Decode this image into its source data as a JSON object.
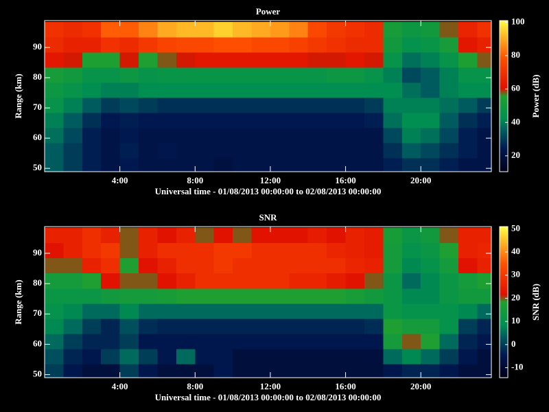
{
  "chart_data": [
    {
      "type": "heatmap",
      "title": "Power",
      "xlabel": "Universal time - 01/08/2013 00:00:00 to 02/08/2013 00:00:00",
      "ylabel": "Range (km)",
      "colorbar_label": "Power (dB)",
      "x": [
        0.5,
        1.5,
        2.5,
        3.5,
        4.5,
        5.5,
        6.5,
        7.5,
        8.5,
        9.5,
        10.5,
        11.5,
        12.5,
        13.5,
        14.5,
        15.5,
        16.5,
        17.5,
        18.5,
        19.5,
        20.5,
        21.5,
        22.5,
        23.5
      ],
      "y": [
        51,
        56,
        61,
        66,
        71,
        76,
        81,
        86,
        91,
        96
      ],
      "z": [
        [
          35,
          30,
          25,
          22,
          24,
          22,
          22,
          22,
          22,
          20,
          22,
          22,
          22,
          22,
          22,
          22,
          22,
          22,
          25,
          28,
          28,
          25,
          22,
          22
        ],
        [
          35,
          30,
          25,
          22,
          25,
          22,
          23,
          22,
          22,
          22,
          22,
          22,
          22,
          22,
          22,
          22,
          22,
          22,
          28,
          35,
          32,
          28,
          25,
          22
        ],
        [
          38,
          32,
          25,
          22,
          24,
          22,
          22,
          22,
          22,
          22,
          22,
          22,
          22,
          22,
          22,
          22,
          22,
          22,
          32,
          40,
          38,
          32,
          25,
          22
        ],
        [
          40,
          35,
          28,
          24,
          25,
          24,
          24,
          24,
          24,
          24,
          24,
          24,
          24,
          24,
          24,
          24,
          24,
          25,
          38,
          42,
          42,
          35,
          28,
          25
        ],
        [
          45,
          40,
          35,
          30,
          32,
          30,
          28,
          28,
          28,
          28,
          28,
          28,
          28,
          28,
          28,
          28,
          28,
          30,
          40,
          40,
          40,
          38,
          35,
          30
        ],
        [
          48,
          45,
          42,
          40,
          40,
          42,
          42,
          42,
          42,
          42,
          42,
          42,
          42,
          42,
          42,
          42,
          42,
          42,
          42,
          38,
          35,
          40,
          42,
          42
        ],
        [
          52,
          50,
          45,
          45,
          48,
          45,
          46,
          46,
          46,
          46,
          46,
          46,
          46,
          46,
          46,
          48,
          48,
          45,
          40,
          32,
          35,
          40,
          45,
          45
        ],
        [
          62,
          60,
          55,
          55,
          60,
          55,
          58,
          60,
          62,
          62,
          62,
          62,
          62,
          62,
          60,
          60,
          62,
          60,
          45,
          38,
          40,
          45,
          55,
          58
        ],
        [
          68,
          65,
          65,
          70,
          68,
          72,
          75,
          76,
          76,
          78,
          78,
          76,
          76,
          74,
          72,
          70,
          68,
          68,
          50,
          44,
          46,
          52,
          62,
          65
        ],
        [
          70,
          68,
          70,
          80,
          80,
          85,
          90,
          92,
          92,
          95,
          92,
          90,
          88,
          85,
          76,
          72,
          70,
          68,
          52,
          48,
          50,
          58,
          66,
          70
        ]
      ],
      "xlim": [
        0,
        23.75
      ],
      "ylim": [
        48.9,
        98.9
      ],
      "clim": [
        10.5,
        101
      ],
      "xticks": [
        {
          "value": 4,
          "label": "4:00"
        },
        {
          "value": 8,
          "label": "8:00"
        },
        {
          "value": 12,
          "label": "12:00"
        },
        {
          "value": 16,
          "label": "16:00"
        },
        {
          "value": 20,
          "label": "20:00"
        }
      ],
      "yticks": [
        50,
        60,
        70,
        80,
        90
      ],
      "cticks": [
        20,
        40,
        60,
        80,
        100
      ],
      "colorscale": [
        [
          0,
          "#000018"
        ],
        [
          0.15,
          "#001850"
        ],
        [
          0.28,
          "#006060"
        ],
        [
          0.35,
          "#009050"
        ],
        [
          0.5,
          "#20a030"
        ],
        [
          0.55,
          "#e01000"
        ],
        [
          0.75,
          "#ff5000"
        ],
        [
          1,
          "#ffff40"
        ]
      ]
    },
    {
      "type": "heatmap",
      "title": "SNR",
      "xlabel": "Universal time - 01/08/2013 00:00:00 to 02/08/2013 00:00:00",
      "ylabel": "Range (km)",
      "colorbar_label": "SNR (dB)",
      "x": [
        0.5,
        1.5,
        2.5,
        3.5,
        4.5,
        5.5,
        6.5,
        7.5,
        8.5,
        9.5,
        10.5,
        11.5,
        12.5,
        13.5,
        14.5,
        15.5,
        16.5,
        17.5,
        18.5,
        19.5,
        20.5,
        21.5,
        22.5,
        23.5
      ],
      "y": [
        51,
        56,
        61,
        66,
        71,
        76,
        81,
        86,
        91,
        96
      ],
      "z": [
        [
          0,
          -5,
          -8,
          -8,
          0,
          -5,
          -8,
          -8,
          -8,
          -5,
          -8,
          -8,
          -8,
          -8,
          -8,
          -8,
          -8,
          -8,
          -5,
          -3,
          -3,
          -5,
          -8,
          -8
        ],
        [
          2,
          -3,
          -5,
          0,
          5,
          0,
          -5,
          5,
          -5,
          -5,
          -8,
          -8,
          -8,
          -8,
          -8,
          -8,
          -8,
          -8,
          5,
          8,
          5,
          0,
          -5,
          -8
        ],
        [
          5,
          0,
          -3,
          -3,
          0,
          -5,
          -5,
          -5,
          -5,
          -5,
          -5,
          -5,
          -5,
          -5,
          -5,
          -5,
          -5,
          -5,
          15,
          20,
          18,
          5,
          -3,
          -5
        ],
        [
          8,
          5,
          0,
          -3,
          2,
          -2,
          -3,
          -3,
          -3,
          -3,
          -3,
          -3,
          -3,
          -3,
          -3,
          -3,
          -3,
          -2,
          18,
          15,
          15,
          10,
          0,
          -3
        ],
        [
          10,
          8,
          5,
          5,
          8,
          5,
          5,
          5,
          5,
          5,
          5,
          5,
          5,
          5,
          5,
          5,
          5,
          5,
          12,
          10,
          10,
          10,
          8,
          5
        ],
        [
          12,
          12,
          12,
          14,
          15,
          15,
          16,
          18,
          18,
          18,
          18,
          18,
          18,
          18,
          18,
          18,
          16,
          14,
          12,
          8,
          8,
          12,
          14,
          14
        ],
        [
          15,
          15,
          18,
          22,
          20,
          20,
          22,
          25,
          28,
          28,
          28,
          28,
          28,
          26,
          26,
          24,
          22,
          20,
          12,
          5,
          8,
          12,
          15,
          18
        ],
        [
          20,
          20,
          25,
          28,
          18,
          22,
          25,
          28,
          28,
          30,
          28,
          28,
          28,
          28,
          28,
          28,
          26,
          25,
          15,
          8,
          10,
          15,
          22,
          25
        ],
        [
          22,
          25,
          28,
          30,
          20,
          25,
          28,
          28,
          28,
          30,
          30,
          28,
          28,
          28,
          28,
          26,
          25,
          24,
          15,
          10,
          12,
          18,
          25,
          26
        ],
        [
          25,
          25,
          28,
          25,
          20,
          25,
          22,
          25,
          20,
          22,
          20,
          22,
          22,
          22,
          24,
          22,
          25,
          24,
          16,
          12,
          14,
          20,
          25,
          25
        ]
      ],
      "xlim": [
        0,
        23.75
      ],
      "ylim": [
        49,
        98.8
      ],
      "clim": [
        -14.3,
        51
      ],
      "xticks": [
        {
          "value": 4,
          "label": "4:00"
        },
        {
          "value": 8,
          "label": "8:00"
        },
        {
          "value": 12,
          "label": "12:00"
        },
        {
          "value": 16,
          "label": "16:00"
        },
        {
          "value": 20,
          "label": "20:00"
        }
      ],
      "yticks": [
        50,
        60,
        70,
        80,
        90
      ],
      "cticks": [
        -10,
        0,
        10,
        20,
        30,
        40,
        50
      ],
      "colorscale": [
        [
          0,
          "#000018"
        ],
        [
          0.15,
          "#001850"
        ],
        [
          0.28,
          "#006060"
        ],
        [
          0.35,
          "#009050"
        ],
        [
          0.5,
          "#20a030"
        ],
        [
          0.55,
          "#e01000"
        ],
        [
          0.75,
          "#ff5000"
        ],
        [
          1,
          "#ffff40"
        ]
      ]
    }
  ]
}
